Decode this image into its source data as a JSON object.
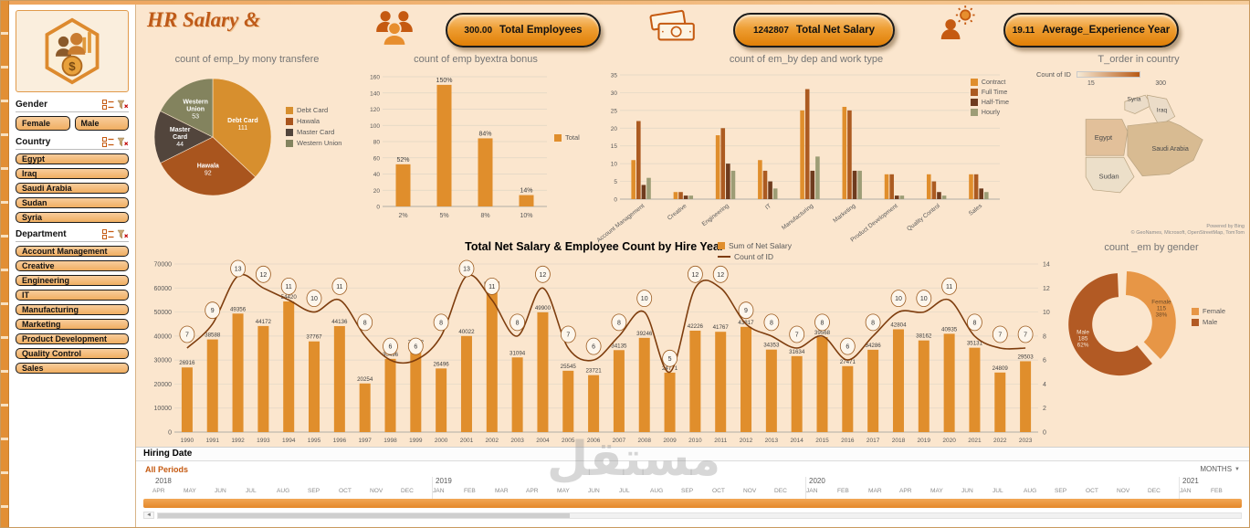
{
  "app": {
    "watermark": "مستقل"
  },
  "header": {
    "title": "HR Salary &",
    "kpis": [
      {
        "value": "300.00",
        "label": "Total Employees",
        "icon": "people-group-icon"
      },
      {
        "value": "1242807",
        "label": "Total Net Salary",
        "icon": "banknotes-icon"
      },
      {
        "value": "19.11",
        "label": "Average_Experience Year",
        "icon": "person-gear-icon"
      }
    ]
  },
  "sidebar": {
    "slicers": [
      {
        "title": "Gender",
        "layout": "row",
        "items": [
          "Female",
          "Male"
        ]
      },
      {
        "title": "Country",
        "layout": "column",
        "items": [
          "Egypt",
          "Iraq",
          "Saudi Arabia",
          "Sudan",
          "Syria"
        ]
      },
      {
        "title": "Department",
        "layout": "column",
        "items": [
          "Account Management",
          "Creative",
          "Engineering",
          "IT",
          "Manufacturing",
          "Marketing",
          "Product Development",
          "Quality Control",
          "Sales"
        ]
      }
    ]
  },
  "chart_data": [
    {
      "type": "pie",
      "title": "count of emp_by mony transfere",
      "labels": [
        "Debt Card",
        "Hawala",
        "Master Card",
        "Western Union"
      ],
      "values": [
        111,
        92,
        44,
        53
      ],
      "colors": [
        "#D78F2E",
        "#A9551E",
        "#52453C",
        "#83835E"
      ],
      "legend_position": "right"
    },
    {
      "type": "bar",
      "title": "count of emp byextra bonus",
      "categories": [
        "2%",
        "5%",
        "8%",
        "10%"
      ],
      "values": [
        52,
        150,
        84,
        14
      ],
      "data_labels": [
        "52%",
        "150%",
        "84%",
        "14%"
      ],
      "ylim": [
        0,
        160
      ],
      "ytick_step": 20,
      "legend": [
        "Total"
      ],
      "color": "#E08E2C"
    },
    {
      "type": "bar-grouped",
      "title": "count of em_by dep and work type",
      "categories": [
        "Account Management",
        "Creative",
        "Engineering",
        "IT",
        "Manufacturing",
        "Marketing",
        "Product Development",
        "Quality Control",
        "Sales"
      ],
      "series": [
        {
          "name": "Contract",
          "color": "#E08E2C",
          "values": [
            11,
            2,
            18,
            11,
            25,
            26,
            7,
            7,
            7
          ]
        },
        {
          "name": "Full Time",
          "color": "#AC5B21",
          "values": [
            22,
            2,
            20,
            8,
            31,
            25,
            7,
            5,
            7
          ]
        },
        {
          "name": "Half-Time",
          "color": "#6E3B1E",
          "values": [
            4,
            1,
            10,
            5,
            8,
            8,
            1,
            2,
            3
          ]
        },
        {
          "name": "Hourly",
          "color": "#9D9D76",
          "values": [
            6,
            1,
            8,
            3,
            12,
            8,
            1,
            1,
            2
          ]
        }
      ],
      "ylim": [
        0,
        35
      ],
      "ytick_step": 5,
      "legend_position": "right"
    },
    {
      "type": "map",
      "title": "T_order in country",
      "legend_label": "Count of ID",
      "scale_min": "15",
      "scale_max": "300",
      "countries": [
        "Syria",
        "Iraq",
        "Egypt",
        "Saudi Arabia",
        "Sudan"
      ],
      "attribution": "Powered by Bing",
      "copyright": "© GeoNames, Microsoft, OpenStreetMap, TomTom"
    },
    {
      "type": "combo",
      "title": "Total Net Salary & Employee Count by Hire Year",
      "categories": [
        "1990",
        "1991",
        "1992",
        "1993",
        "1994",
        "1995",
        "1996",
        "1997",
        "1998",
        "1999",
        "2000",
        "2001",
        "2002",
        "2003",
        "2004",
        "2005",
        "2006",
        "2007",
        "2008",
        "2009",
        "2010",
        "2011",
        "2012",
        "2013",
        "2014",
        "2015",
        "2016",
        "2017",
        "2018",
        "2019",
        "2020",
        "2021",
        "2022",
        "2023"
      ],
      "bar_series": {
        "name": "Sum of Net Salary",
        "color": "#E08E2C",
        "values": [
          26916,
          38588,
          49356,
          44172,
          54420,
          37767,
          44136,
          20254,
          30496,
          35612,
          26496,
          40022,
          59697,
          31094,
          49900,
          25545,
          23721,
          34135,
          39246,
          24771,
          42226,
          41767,
          43817,
          34353,
          31634,
          39568,
          27471,
          34286,
          42804,
          38162,
          40935,
          35131,
          24809,
          29503
        ]
      },
      "line_series": {
        "name": "Count of ID",
        "color": "#7E3D0E",
        "values": [
          7,
          9,
          13,
          12,
          11,
          10,
          11,
          8,
          6,
          6,
          8,
          13,
          11,
          8,
          12,
          7,
          6,
          8,
          10,
          5,
          12,
          12,
          9,
          8,
          7,
          8,
          6,
          8,
          10,
          10,
          11,
          8,
          7,
          7
        ]
      },
      "ylim_left": [
        0,
        70000
      ],
      "ytick_step_left": 10000,
      "ylim_right": [
        0,
        14
      ],
      "ytick_step_right": 2
    },
    {
      "type": "donut",
      "title": "count _em by gender",
      "slices": [
        {
          "label": "Female",
          "value": 115,
          "pct": "38%",
          "color": "#E79646"
        },
        {
          "label": "Male",
          "value": 185,
          "pct": "62%",
          "color": "#B25A24"
        }
      ],
      "legend": [
        "Female",
        "Male"
      ]
    }
  ],
  "timeline": {
    "title": "Hiring  Date",
    "period_label": "All Periods",
    "granularity": "MONTHS",
    "groups": [
      {
        "year": "2018",
        "months": [
          "APR",
          "MAY",
          "JUN",
          "JUL",
          "AUG",
          "SEP",
          "OCT",
          "NOV",
          "DEC"
        ]
      },
      {
        "year": "2019",
        "months": [
          "JAN",
          "FEB",
          "MAR",
          "APR",
          "MAY",
          "JUN",
          "JUL",
          "AUG",
          "SEP",
          "OCT",
          "NOV",
          "DEC"
        ]
      },
      {
        "year": "2020",
        "months": [
          "JAN",
          "FEB",
          "MAR",
          "APR",
          "MAY",
          "JUN",
          "JUL",
          "AUG",
          "SEP",
          "OCT",
          "NOV",
          "DEC"
        ]
      },
      {
        "year": "2021",
        "months": [
          "JAN",
          "FEB"
        ]
      }
    ]
  }
}
